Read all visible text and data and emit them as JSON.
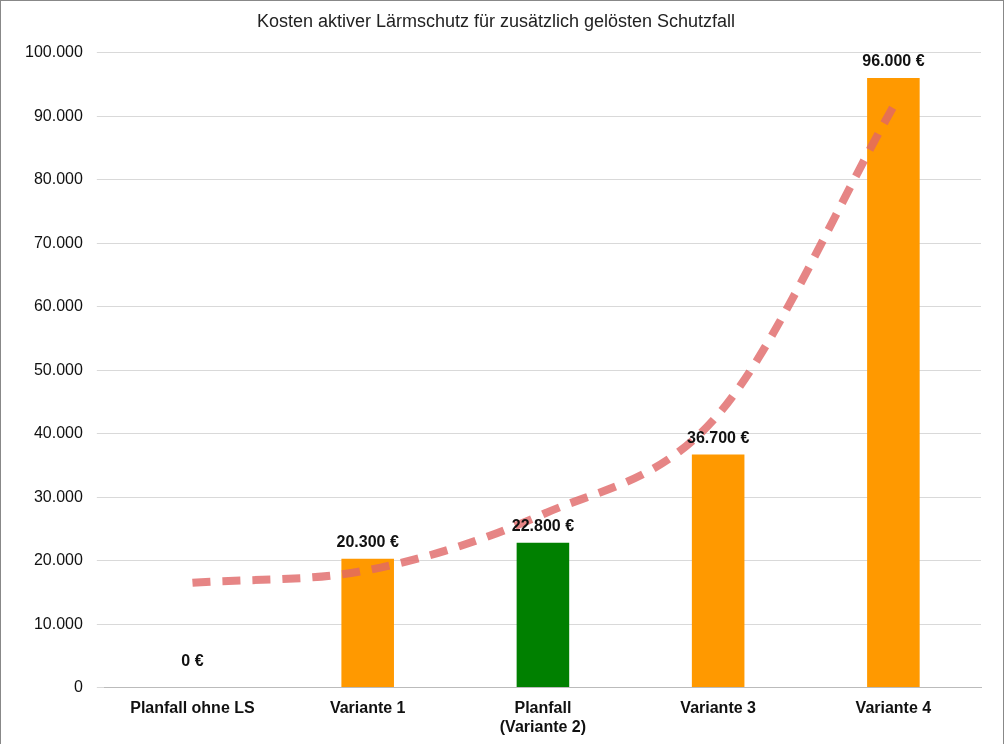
{
  "chart_data": {
    "type": "bar",
    "title": "Kosten aktiver Lärmschutz für zusätzlich gelösten Schutzfall",
    "categories": [
      "Planfall ohne LS",
      "Variante 1",
      "Planfall\n(Variante 2)",
      "Variante 3",
      "Variante 4"
    ],
    "series": [
      {
        "colors": [
          "#ff9900",
          "#ff9900",
          "#008000",
          "#ff9900",
          "#ff9900"
        ],
        "values": [
          0,
          20300,
          22800,
          36700,
          96000
        ],
        "value_labels": [
          "0 €",
          "20.300 €",
          "22.800 €",
          "36.700 €",
          "96.000 €"
        ]
      },
      {
        "type": "line",
        "color": "#e06666",
        "line_style": "dashed",
        "values": [
          16500,
          18500,
          27300,
          43000,
          91500
        ]
      }
    ],
    "ylim": [
      0,
      100000
    ],
    "yticks": [
      {
        "value": 0,
        "label": "0"
      },
      {
        "value": 10000,
        "label": "10.000"
      },
      {
        "value": 20000,
        "label": "20.000"
      },
      {
        "value": 30000,
        "label": "30.000"
      },
      {
        "value": 40000,
        "label": "40.000"
      },
      {
        "value": 50000,
        "label": "50.000"
      },
      {
        "value": 60000,
        "label": "60.000"
      },
      {
        "value": 70000,
        "label": "70.000"
      },
      {
        "value": 80000,
        "label": "80.000"
      },
      {
        "value": 90000,
        "label": "90.000"
      },
      {
        "value": 100000,
        "label": "100.000"
      }
    ],
    "grid": "y",
    "legend": false,
    "marker": "none"
  }
}
